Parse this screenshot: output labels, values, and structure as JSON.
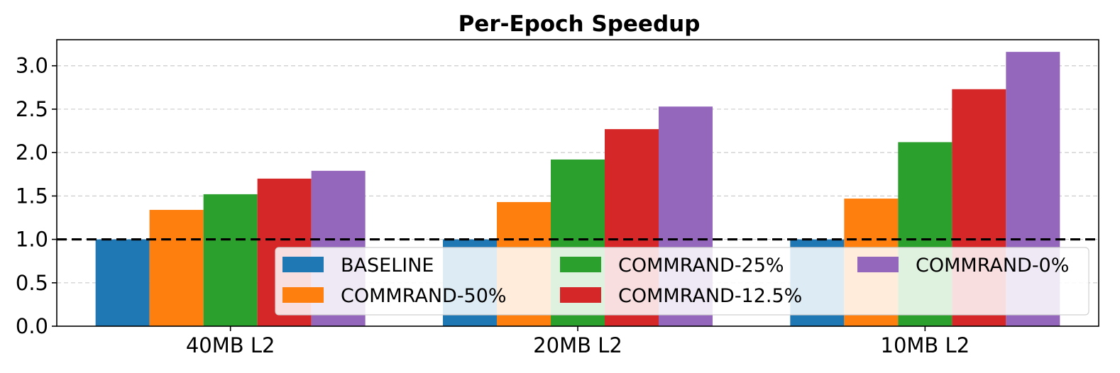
{
  "chart_data": {
    "type": "bar",
    "title": "Per-Epoch Speedup",
    "xlabel": "",
    "ylabel": "",
    "categories": [
      "40MB L2",
      "20MB L2",
      "10MB L2"
    ],
    "series": [
      {
        "name": "BASELINE",
        "color": "#1f77b4",
        "values": [
          1.0,
          1.0,
          1.0
        ]
      },
      {
        "name": "COMMRAND-50%",
        "color": "#ff7f0e",
        "values": [
          1.34,
          1.43,
          1.47
        ]
      },
      {
        "name": "COMMRAND-25%",
        "color": "#2ca02c",
        "values": [
          1.52,
          1.92,
          2.12
        ]
      },
      {
        "name": "COMMRAND-12.5%",
        "color": "#d62728",
        "values": [
          1.7,
          2.27,
          2.73
        ]
      },
      {
        "name": "COMMRAND-0%",
        "color": "#9467bd",
        "values": [
          1.79,
          2.53,
          3.16
        ]
      }
    ],
    "ylim": [
      0,
      3.3
    ],
    "yticks": [
      "0.0",
      "0.5",
      "1.0",
      "1.5",
      "2.0",
      "2.5",
      "3.0"
    ],
    "reference_line": 1.0,
    "grid": "y-dashed",
    "legend": {
      "location": "lower-right",
      "columns": 3
    }
  }
}
